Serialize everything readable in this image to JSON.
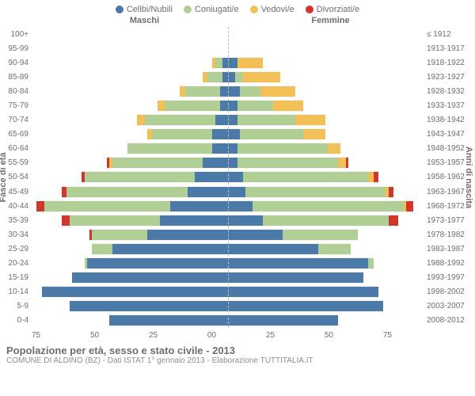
{
  "legend": [
    {
      "label": "Celibi/Nubili",
      "color": "#4c7aa8"
    },
    {
      "label": "Coniugati/e",
      "color": "#b1cf95"
    },
    {
      "label": "Vedovi/e",
      "color": "#f3c058"
    },
    {
      "label": "Divorziati/e",
      "color": "#cf362c"
    }
  ],
  "headers": {
    "male": "Maschi",
    "female": "Femmine"
  },
  "axis_title": {
    "left": "Fasce di età",
    "right": "Anni di nascita"
  },
  "x_ticks_left": [
    "75",
    "50",
    "25",
    "0"
  ],
  "x_ticks_right": [
    "0",
    "25",
    "50",
    "75"
  ],
  "x_max": 78,
  "title": "Popolazione per età, sesso e stato civile - 2013",
  "subtitle": "COMUNE DI ALDINO (BZ) - Dati ISTAT 1° gennaio 2013 - Elaborazione TUTTITALIA.IT",
  "rows": [
    {
      "age": "100+",
      "birth": "≤ 1912",
      "m": {
        "s": 0,
        "c": 0,
        "w": 0,
        "d": 0
      },
      "f": {
        "s": 0,
        "c": 0,
        "w": 0,
        "d": 0
      }
    },
    {
      "age": "95-99",
      "birth": "1913-1917",
      "m": {
        "s": 0,
        "c": 0,
        "w": 0,
        "d": 0
      },
      "f": {
        "s": 0,
        "c": 0,
        "w": 0,
        "d": 0
      }
    },
    {
      "age": "90-94",
      "birth": "1918-1922",
      "m": {
        "s": 2,
        "c": 3,
        "w": 1,
        "d": 0
      },
      "f": {
        "s": 4,
        "c": 0,
        "w": 10,
        "d": 0
      }
    },
    {
      "age": "85-89",
      "birth": "1923-1927",
      "m": {
        "s": 2,
        "c": 6,
        "w": 2,
        "d": 0
      },
      "f": {
        "s": 3,
        "c": 3,
        "w": 15,
        "d": 0
      }
    },
    {
      "age": "80-84",
      "birth": "1928-1932",
      "m": {
        "s": 3,
        "c": 14,
        "w": 2,
        "d": 0
      },
      "f": {
        "s": 5,
        "c": 8,
        "w": 14,
        "d": 0
      }
    },
    {
      "age": "75-79",
      "birth": "1933-1937",
      "m": {
        "s": 3,
        "c": 22,
        "w": 3,
        "d": 0
      },
      "f": {
        "s": 4,
        "c": 14,
        "w": 12,
        "d": 0
      }
    },
    {
      "age": "70-74",
      "birth": "1938-1942",
      "m": {
        "s": 5,
        "c": 28,
        "w": 3,
        "d": 0
      },
      "f": {
        "s": 4,
        "c": 23,
        "w": 12,
        "d": 0
      }
    },
    {
      "age": "65-69",
      "birth": "1943-1947",
      "m": {
        "s": 6,
        "c": 24,
        "w": 2,
        "d": 0
      },
      "f": {
        "s": 5,
        "c": 25,
        "w": 9,
        "d": 0
      }
    },
    {
      "age": "60-64",
      "birth": "1948-1952",
      "m": {
        "s": 6,
        "c": 34,
        "w": 0,
        "d": 0
      },
      "f": {
        "s": 4,
        "c": 36,
        "w": 5,
        "d": 0
      }
    },
    {
      "age": "55-59",
      "birth": "1953-1957",
      "m": {
        "s": 10,
        "c": 36,
        "w": 1,
        "d": 1
      },
      "f": {
        "s": 4,
        "c": 40,
        "w": 3,
        "d": 1
      }
    },
    {
      "age": "50-54",
      "birth": "1958-1962",
      "m": {
        "s": 13,
        "c": 44,
        "w": 0,
        "d": 1
      },
      "f": {
        "s": 6,
        "c": 50,
        "w": 2,
        "d": 2
      }
    },
    {
      "age": "45-49",
      "birth": "1963-1967",
      "m": {
        "s": 16,
        "c": 48,
        "w": 0,
        "d": 2
      },
      "f": {
        "s": 7,
        "c": 56,
        "w": 1,
        "d": 2
      }
    },
    {
      "age": "40-44",
      "birth": "1968-1972",
      "m": {
        "s": 23,
        "c": 50,
        "w": 0,
        "d": 3
      },
      "f": {
        "s": 10,
        "c": 60,
        "w": 1,
        "d": 3
      }
    },
    {
      "age": "35-39",
      "birth": "1973-1977",
      "m": {
        "s": 27,
        "c": 36,
        "w": 0,
        "d": 3
      },
      "f": {
        "s": 14,
        "c": 50,
        "w": 0,
        "d": 4
      }
    },
    {
      "age": "30-34",
      "birth": "1978-1982",
      "m": {
        "s": 32,
        "c": 22,
        "w": 0,
        "d": 1
      },
      "f": {
        "s": 22,
        "c": 30,
        "w": 0,
        "d": 0
      }
    },
    {
      "age": "25-29",
      "birth": "1983-1987",
      "m": {
        "s": 46,
        "c": 8,
        "w": 0,
        "d": 0
      },
      "f": {
        "s": 36,
        "c": 13,
        "w": 0,
        "d": 0
      }
    },
    {
      "age": "20-24",
      "birth": "1988-1992",
      "m": {
        "s": 56,
        "c": 1,
        "w": 0,
        "d": 0
      },
      "f": {
        "s": 56,
        "c": 2,
        "w": 0,
        "d": 0
      }
    },
    {
      "age": "15-19",
      "birth": "1993-1997",
      "m": {
        "s": 62,
        "c": 0,
        "w": 0,
        "d": 0
      },
      "f": {
        "s": 54,
        "c": 0,
        "w": 0,
        "d": 0
      }
    },
    {
      "age": "10-14",
      "birth": "1998-2002",
      "m": {
        "s": 74,
        "c": 0,
        "w": 0,
        "d": 0
      },
      "f": {
        "s": 60,
        "c": 0,
        "w": 0,
        "d": 0
      }
    },
    {
      "age": "5-9",
      "birth": "2003-2007",
      "m": {
        "s": 63,
        "c": 0,
        "w": 0,
        "d": 0
      },
      "f": {
        "s": 62,
        "c": 0,
        "w": 0,
        "d": 0
      }
    },
    {
      "age": "0-4",
      "birth": "2008-2012",
      "m": {
        "s": 47,
        "c": 0,
        "w": 0,
        "d": 0
      },
      "f": {
        "s": 44,
        "c": 0,
        "w": 0,
        "d": 0
      }
    }
  ],
  "colors": {
    "single": "#4c7aa8",
    "married": "#b1cf95",
    "widowed": "#f3c058",
    "divorced": "#cf362c",
    "grid_dash": "#bbbbbb",
    "text": "#6e6e6e"
  }
}
